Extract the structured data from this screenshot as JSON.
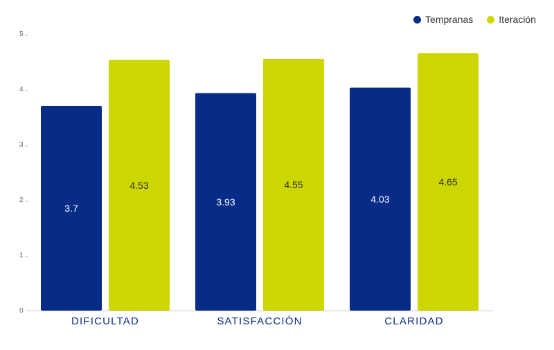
{
  "chart_data": {
    "type": "bar",
    "categories": [
      "DIFICULTAD",
      "SATISFACCIÓN",
      "CLARIDAD"
    ],
    "series": [
      {
        "name": "Tempranas",
        "values": [
          3.7,
          3.93,
          4.03
        ],
        "color": "#062c88",
        "label_color": "#ffffff"
      },
      {
        "name": "Iteración",
        "values": [
          4.53,
          4.55,
          4.65
        ],
        "color": "#ccd600",
        "label_color": "#333333"
      }
    ],
    "data_labels": [
      [
        "3.7",
        "3.93",
        "4.03"
      ],
      [
        "4.53",
        "4.55",
        "4.65"
      ]
    ],
    "yticks": [
      "0",
      "1",
      "2",
      "3",
      "4",
      "5"
    ],
    "ylim": [
      0,
      5
    ],
    "grid": false,
    "legend_position": "top-right",
    "category_label_color": "#062c88"
  }
}
